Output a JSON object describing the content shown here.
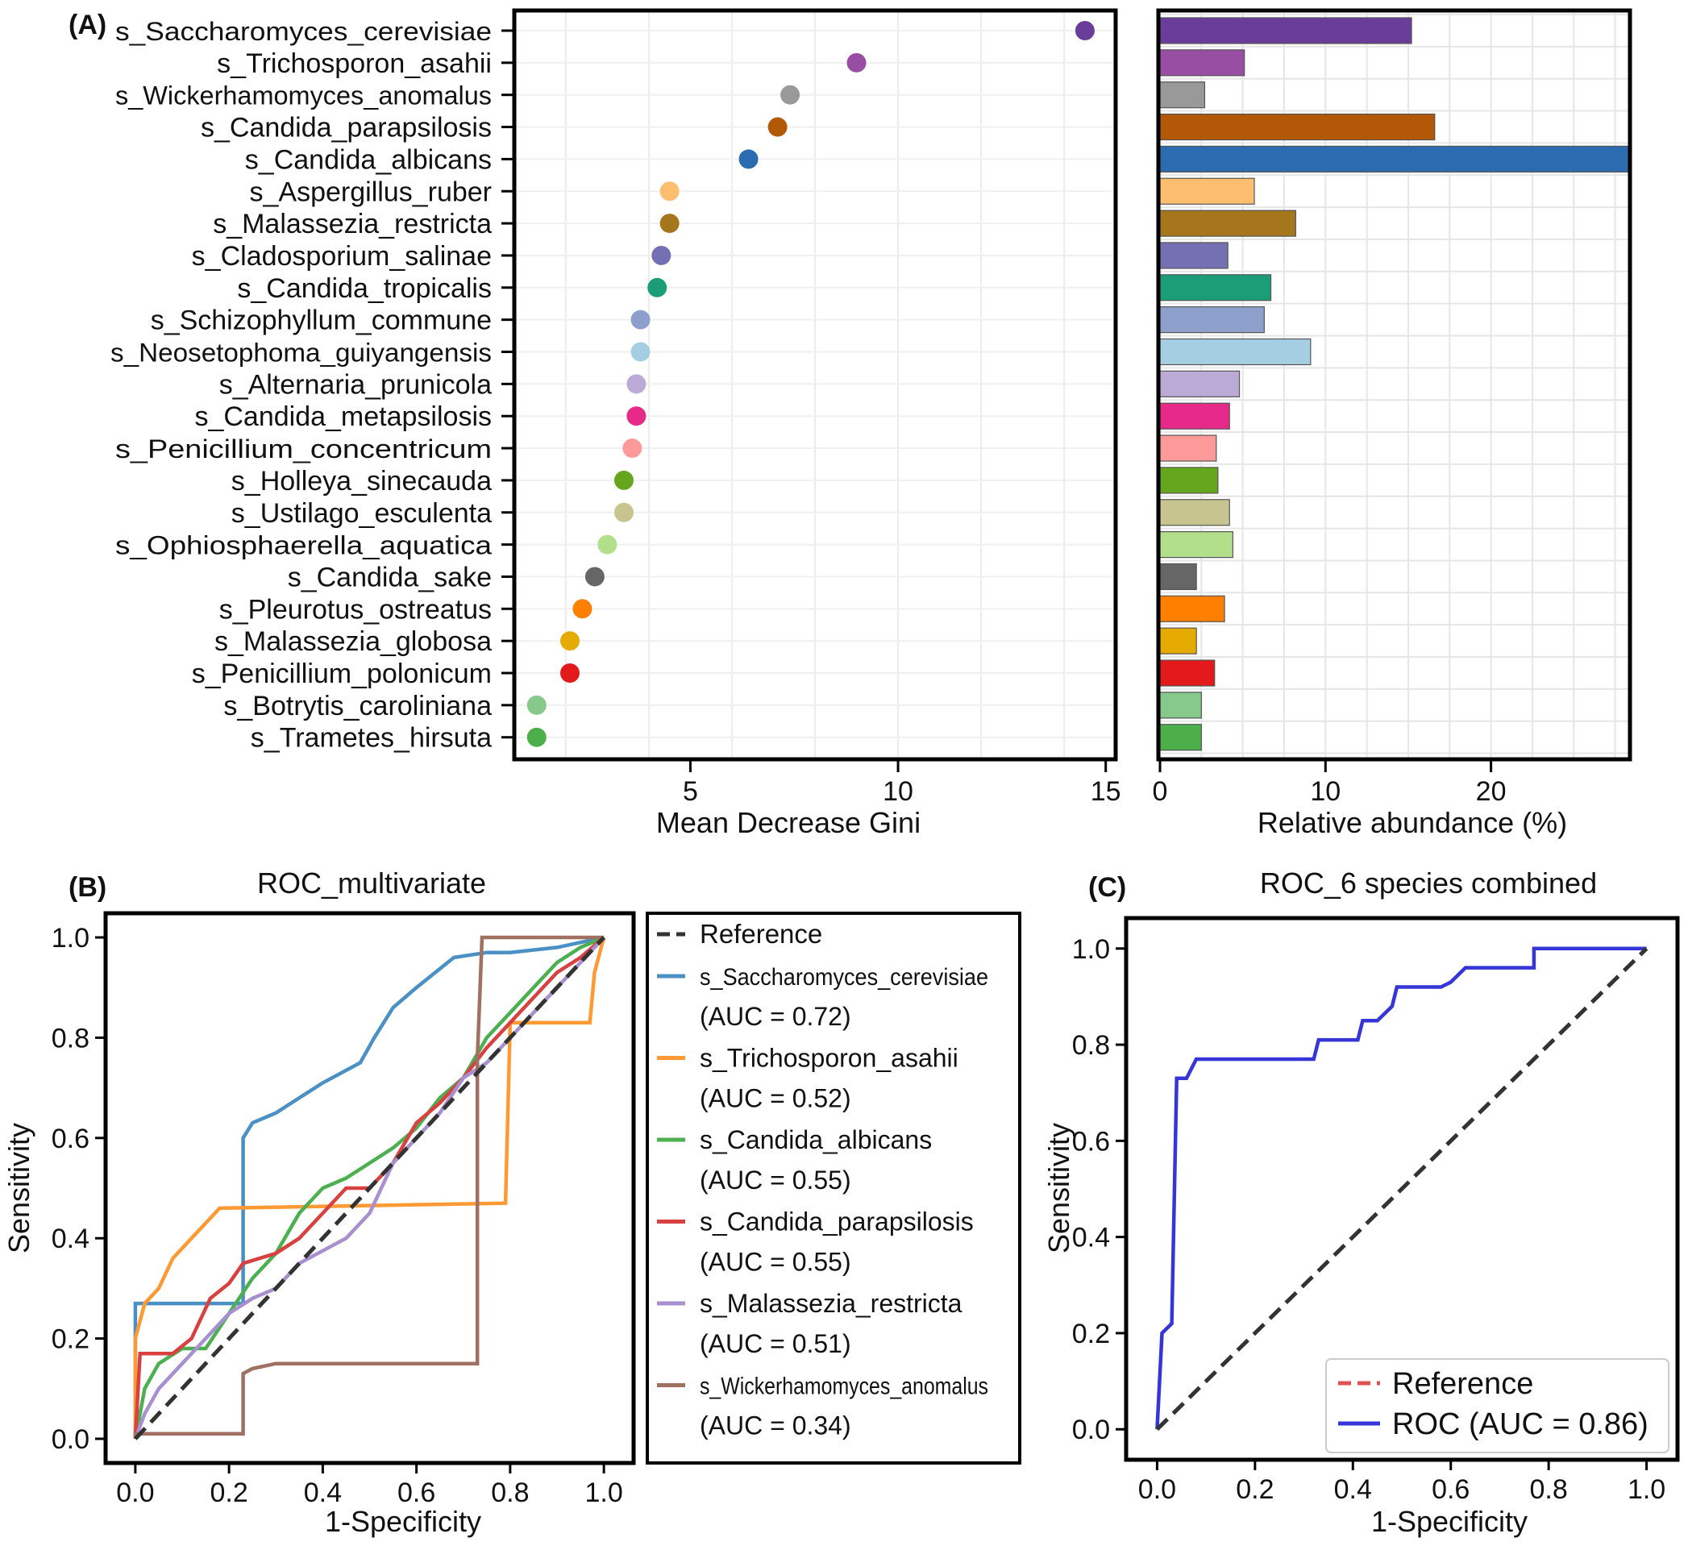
{
  "chart_data": [
    {
      "panel": "(A)",
      "type": "scatter",
      "title": "",
      "xlabel": "Mean Decrease Gini",
      "ylabel": "",
      "xlim": [
        0.8,
        15.2
      ],
      "xticks": [
        "5",
        "10",
        "15"
      ],
      "grid": true,
      "categories": [
        "s_Saccharomyces_cerevisiae",
        "s_Trichosporon_asahii",
        "s_Wickerhamomyces_anomalus",
        "s_Candida_parapsilosis",
        "s_Candida_albicans",
        "s_Aspergillus_ruber",
        "s_Malassezia_restricta",
        "s_Cladosporium_salinae",
        "s_Candida_tropicalis",
        "s_Schizophyllum_commune",
        "s_Neosetophoma_guiyangensis",
        "s_Alternaria_prunicola",
        "s_Candida_metapsilosis",
        "s_Penicillium_concentricum",
        "s_Holleya_sinecauda",
        "s_Ustilago_esculenta",
        "s_Ophiosphaerella_aquatica",
        "s_Candida_sake",
        "s_Pleurotus_ostreatus",
        "s_Malassezia_globosa",
        "s_Penicillium_polonicum",
        "s_Botrytis_caroliniana",
        "s_Trametes_hirsuta"
      ],
      "values": [
        14.5,
        9.0,
        7.4,
        7.1,
        6.4,
        4.5,
        4.5,
        4.3,
        4.2,
        3.8,
        3.8,
        3.7,
        3.7,
        3.6,
        3.4,
        3.4,
        3.0,
        2.7,
        2.4,
        2.1,
        2.1,
        1.3,
        1.3
      ],
      "colors": [
        "#6a3d9a",
        "#984ea3",
        "#999999",
        "#b35806",
        "#2b6cb0",
        "#fdbf6f",
        "#a6761d",
        "#7570b3",
        "#1b9e77",
        "#8da0cb",
        "#a6cee3",
        "#bcaad6",
        "#e7298a",
        "#fb9a99",
        "#66a61e",
        "#c8c490",
        "#b2df8a",
        "#666666",
        "#ff7f00",
        "#e6ab02",
        "#e31a1c",
        "#86c98a",
        "#4daf4a"
      ]
    },
    {
      "panel": "(A)",
      "type": "bar",
      "orientation": "horizontal",
      "xlabel": "Relative abundance (%)",
      "xlim": [
        0,
        28.3
      ],
      "xticks": [
        "0",
        "10",
        "20"
      ],
      "grid": true,
      "values": [
        15.2,
        5.1,
        2.7,
        16.6,
        28.3,
        5.7,
        8.2,
        4.1,
        6.7,
        6.3,
        9.1,
        4.8,
        4.2,
        3.4,
        3.5,
        4.2,
        4.4,
        2.2,
        3.9,
        2.2,
        3.3,
        2.5,
        2.5
      ]
    },
    {
      "panel": "(B)",
      "type": "line",
      "title": "ROC_multivariate",
      "xlabel": "1-Specificity",
      "ylabel": "Sensitivity",
      "xlim": [
        -0.06,
        1.06
      ],
      "ylim": [
        -0.045,
        1.045
      ],
      "xticks": [
        "0.0",
        "0.2",
        "0.4",
        "0.6",
        "0.8",
        "1.0"
      ],
      "yticks": [
        "0.0",
        "0.2",
        "0.4",
        "0.6",
        "0.8",
        "1.0"
      ],
      "legend_position": "outside-right",
      "series": [
        {
          "name": "Reference",
          "auc": "",
          "color": "#333333",
          "dash": true,
          "points": [
            [
              0,
              0
            ],
            [
              1,
              1
            ]
          ]
        },
        {
          "name": "s_Saccharomyces_cerevisiae",
          "auc": "(AUC = 0.72)",
          "color": "#4a90c4",
          "points": [
            [
              0,
              0
            ],
            [
              0,
              0.27
            ],
            [
              0.23,
              0.27
            ],
            [
              0.23,
              0.6
            ],
            [
              0.25,
              0.63
            ],
            [
              0.3,
              0.65
            ],
            [
              0.35,
              0.68
            ],
            [
              0.4,
              0.71
            ],
            [
              0.48,
              0.75
            ],
            [
              0.51,
              0.8
            ],
            [
              0.55,
              0.86
            ],
            [
              0.6,
              0.9
            ],
            [
              0.68,
              0.96
            ],
            [
              0.75,
              0.97
            ],
            [
              0.8,
              0.97
            ],
            [
              0.9,
              0.98
            ],
            [
              0.95,
              0.99
            ],
            [
              1,
              1
            ]
          ]
        },
        {
          "name": "s_Trichosporon_asahii",
          "auc": "(AUC = 0.52)",
          "color": "#ff9933",
          "points": [
            [
              0,
              0
            ],
            [
              0,
              0.2
            ],
            [
              0.02,
              0.27
            ],
            [
              0.05,
              0.3
            ],
            [
              0.08,
              0.36
            ],
            [
              0.12,
              0.4
            ],
            [
              0.15,
              0.43
            ],
            [
              0.18,
              0.46
            ],
            [
              0.79,
              0.47
            ],
            [
              0.8,
              0.83
            ],
            [
              0.97,
              0.83
            ],
            [
              0.98,
              0.93
            ],
            [
              1,
              1
            ]
          ]
        },
        {
          "name": "s_Candida_albicans",
          "auc": "(AUC = 0.55)",
          "color": "#4caf50",
          "points": [
            [
              0,
              0
            ],
            [
              0.02,
              0.1
            ],
            [
              0.05,
              0.15
            ],
            [
              0.1,
              0.18
            ],
            [
              0.15,
              0.18
            ],
            [
              0.2,
              0.25
            ],
            [
              0.25,
              0.32
            ],
            [
              0.3,
              0.37
            ],
            [
              0.35,
              0.45
            ],
            [
              0.4,
              0.5
            ],
            [
              0.45,
              0.52
            ],
            [
              0.5,
              0.55
            ],
            [
              0.55,
              0.58
            ],
            [
              0.6,
              0.62
            ],
            [
              0.65,
              0.68
            ],
            [
              0.7,
              0.72
            ],
            [
              0.75,
              0.8
            ],
            [
              0.8,
              0.85
            ],
            [
              0.85,
              0.9
            ],
            [
              0.9,
              0.95
            ],
            [
              0.95,
              0.98
            ],
            [
              1,
              1
            ]
          ]
        },
        {
          "name": "s_Candida_parapsilosis",
          "auc": "(AUC = 0.55)",
          "color": "#d94040",
          "points": [
            [
              0,
              0
            ],
            [
              0.01,
              0.17
            ],
            [
              0.08,
              0.17
            ],
            [
              0.12,
              0.2
            ],
            [
              0.16,
              0.28
            ],
            [
              0.2,
              0.31
            ],
            [
              0.23,
              0.35
            ],
            [
              0.3,
              0.37
            ],
            [
              0.35,
              0.4
            ],
            [
              0.4,
              0.45
            ],
            [
              0.45,
              0.5
            ],
            [
              0.5,
              0.5
            ],
            [
              0.55,
              0.55
            ],
            [
              0.6,
              0.63
            ],
            [
              0.65,
              0.67
            ],
            [
              0.7,
              0.72
            ],
            [
              0.75,
              0.78
            ],
            [
              0.8,
              0.83
            ],
            [
              0.85,
              0.88
            ],
            [
              0.9,
              0.93
            ],
            [
              0.95,
              0.96
            ],
            [
              1,
              1
            ]
          ]
        },
        {
          "name": "s_Malassezia_restricta",
          "auc": "(AUC = 0.51)",
          "color": "#a88fd0",
          "points": [
            [
              0,
              0
            ],
            [
              0.02,
              0.05
            ],
            [
              0.05,
              0.1
            ],
            [
              0.1,
              0.15
            ],
            [
              0.15,
              0.2
            ],
            [
              0.2,
              0.25
            ],
            [
              0.25,
              0.28
            ],
            [
              0.3,
              0.3
            ],
            [
              0.35,
              0.35
            ],
            [
              0.45,
              0.4
            ],
            [
              0.5,
              0.45
            ],
            [
              0.55,
              0.55
            ],
            [
              0.6,
              0.6
            ],
            [
              0.65,
              0.65
            ],
            [
              0.7,
              0.72
            ],
            [
              0.75,
              0.75
            ],
            [
              0.8,
              0.8
            ],
            [
              0.85,
              0.85
            ],
            [
              0.9,
              0.9
            ],
            [
              0.95,
              0.95
            ],
            [
              1,
              1
            ]
          ]
        },
        {
          "name": "s_Wickerhamomyces_anomalus",
          "auc": "(AUC = 0.34)",
          "color": "#a07060",
          "points": [
            [
              0,
              0
            ],
            [
              0,
              0.01
            ],
            [
              0.23,
              0.01
            ],
            [
              0.23,
              0.13
            ],
            [
              0.25,
              0.14
            ],
            [
              0.3,
              0.15
            ],
            [
              0.73,
              0.15
            ],
            [
              0.73,
              0.76
            ],
            [
              0.74,
              1
            ],
            [
              1,
              1
            ]
          ]
        }
      ]
    },
    {
      "panel": "(C)",
      "type": "line",
      "title": "ROC_6 species combined",
      "xlabel": "1-Specificity",
      "ylabel": "Sensitivity",
      "xlim": [
        -0.06,
        1.06
      ],
      "ylim": [
        -0.06,
        1.06
      ],
      "xticks": [
        "0.0",
        "0.2",
        "0.4",
        "0.6",
        "0.8",
        "1.0"
      ],
      "yticks": [
        "0.0",
        "0.2",
        "0.4",
        "0.6",
        "0.8",
        "1.0"
      ],
      "legend_position": "bottom-right",
      "series": [
        {
          "name": "Reference",
          "color": "#333333",
          "dash": true,
          "legend_color": "#e05050",
          "points": [
            [
              0,
              0
            ],
            [
              1,
              1
            ]
          ]
        },
        {
          "name": "ROC (AUC = 0.86)",
          "color": "#3535d8",
          "points": [
            [
              0,
              0
            ],
            [
              0.01,
              0.2
            ],
            [
              0.03,
              0.22
            ],
            [
              0.04,
              0.73
            ],
            [
              0.06,
              0.73
            ],
            [
              0.08,
              0.77
            ],
            [
              0.32,
              0.77
            ],
            [
              0.33,
              0.81
            ],
            [
              0.38,
              0.81
            ],
            [
              0.41,
              0.81
            ],
            [
              0.42,
              0.85
            ],
            [
              0.45,
              0.85
            ],
            [
              0.48,
              0.88
            ],
            [
              0.49,
              0.92
            ],
            [
              0.58,
              0.92
            ],
            [
              0.6,
              0.93
            ],
            [
              0.63,
              0.96
            ],
            [
              0.77,
              0.96
            ],
            [
              0.77,
              1
            ],
            [
              1,
              1
            ]
          ]
        }
      ]
    }
  ]
}
